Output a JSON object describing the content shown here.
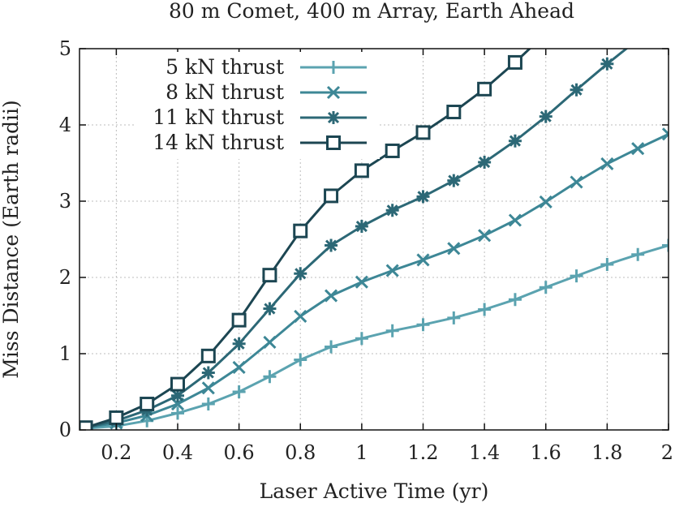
{
  "chart_data": {
    "type": "line",
    "title": "80 m Comet, 400 m Array, Earth Ahead",
    "xlabel": "Laser Active Time (yr)",
    "ylabel": "Miss Distance (Earth radii)",
    "xlim": [
      0.08,
      2.0
    ],
    "ylim": [
      0,
      5
    ],
    "xticks": [
      0.2,
      0.4,
      0.6,
      0.8,
      1.0,
      1.2,
      1.4,
      1.6,
      1.8,
      2.0
    ],
    "xtick_labels": [
      "0.2",
      "0.4",
      "0.6",
      "0.8",
      "1",
      "1.2",
      "1.4",
      "1.6",
      "1.8",
      "2"
    ],
    "yticks": [
      0,
      1,
      2,
      3,
      4,
      5
    ],
    "ytick_labels": [
      "0",
      "1",
      "2",
      "3",
      "4",
      "5"
    ],
    "grid": true,
    "legend_position": "top-left",
    "series": [
      {
        "name": "5 kN thrust",
        "color": "#5ba3b0",
        "marker": "plus",
        "x": [
          0.1,
          0.2,
          0.3,
          0.4,
          0.5,
          0.6,
          0.7,
          0.8,
          0.9,
          1.0,
          1.1,
          1.2,
          1.3,
          1.4,
          1.5,
          1.6,
          1.7,
          1.8,
          1.9,
          2.0
        ],
        "y": [
          0.02,
          0.05,
          0.12,
          0.22,
          0.34,
          0.5,
          0.7,
          0.92,
          1.09,
          1.2,
          1.3,
          1.38,
          1.47,
          1.58,
          1.71,
          1.87,
          2.02,
          2.17,
          2.3,
          2.42
        ]
      },
      {
        "name": "8 kN thrust",
        "color": "#3d8796",
        "marker": "x",
        "x": [
          0.1,
          0.2,
          0.3,
          0.4,
          0.5,
          0.6,
          0.7,
          0.8,
          0.9,
          1.0,
          1.1,
          1.2,
          1.3,
          1.4,
          1.5,
          1.6,
          1.7,
          1.8,
          1.9,
          2.0
        ],
        "y": [
          0.03,
          0.09,
          0.19,
          0.34,
          0.55,
          0.82,
          1.15,
          1.49,
          1.76,
          1.94,
          2.09,
          2.23,
          2.38,
          2.55,
          2.75,
          2.99,
          3.25,
          3.49,
          3.69,
          3.88
        ]
      },
      {
        "name": "11 kN thrust",
        "color": "#2c6876",
        "marker": "star",
        "x": [
          0.1,
          0.2,
          0.3,
          0.4,
          0.5,
          0.6,
          0.7,
          0.8,
          0.9,
          1.0,
          1.1,
          1.2,
          1.3,
          1.4,
          1.5,
          1.6,
          1.7,
          1.8,
          1.9
        ],
        "y": [
          0.03,
          0.12,
          0.26,
          0.45,
          0.75,
          1.13,
          1.59,
          2.05,
          2.42,
          2.67,
          2.88,
          3.06,
          3.27,
          3.51,
          3.79,
          4.11,
          4.46,
          4.8,
          5.12
        ]
      },
      {
        "name": "14 kN thrust",
        "color": "#1c4652",
        "marker": "square",
        "x": [
          0.1,
          0.2,
          0.3,
          0.4,
          0.5,
          0.6,
          0.7,
          0.8,
          0.9,
          1.0,
          1.1,
          1.2,
          1.3,
          1.4,
          1.5,
          1.6
        ],
        "y": [
          0.03,
          0.16,
          0.34,
          0.6,
          0.97,
          1.44,
          2.03,
          2.61,
          3.07,
          3.4,
          3.66,
          3.9,
          4.17,
          4.47,
          4.82,
          5.2
        ]
      }
    ]
  }
}
